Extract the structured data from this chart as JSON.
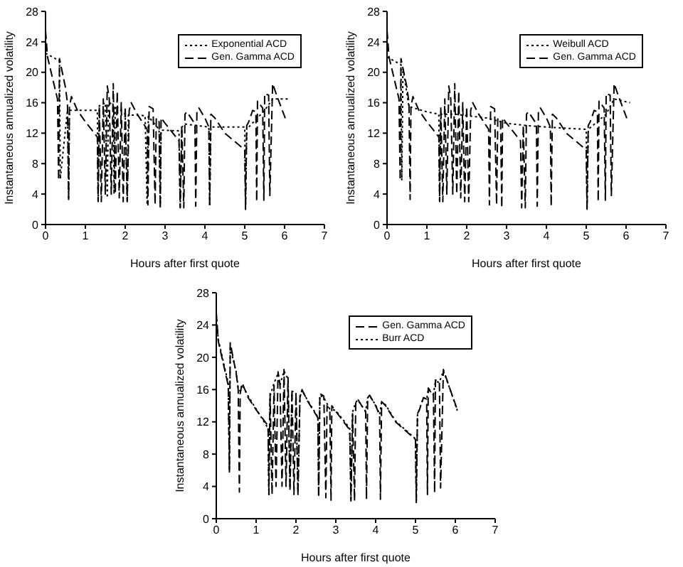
{
  "chart_data": [
    {
      "type": "line",
      "xlabel": "Hours after first quote",
      "ylabel": "Instantaneous annualized volatility",
      "xlim": [
        0,
        7
      ],
      "xticks": [
        0,
        1,
        2,
        3,
        4,
        5,
        6,
        7
      ],
      "ylim": [
        0,
        28
      ],
      "yticks": [
        0,
        4,
        8,
        12,
        16,
        20,
        24,
        28
      ],
      "legend": "top right",
      "marker": "none",
      "series": [
        {
          "name": "Exponential ACD",
          "color": "#000000",
          "line_style": "dotted",
          "x": [
            0,
            0.35,
            0.37,
            0.55,
            0.58,
            0.6,
            1.3,
            1.32,
            1.35,
            1.5,
            1.55,
            1.58,
            1.7,
            1.72,
            1.75,
            2.0,
            2.05,
            2.08,
            2.5,
            2.55,
            2.58,
            2.85,
            2.88,
            2.9,
            3.35,
            3.38,
            3.42,
            3.5,
            4.1,
            4.12,
            4.15,
            5.0,
            5.02,
            5.05,
            5.1,
            5.5,
            5.7,
            6.1
          ],
          "values": [
            22.5,
            21.5,
            6,
            15,
            3.5,
            15,
            15,
            3,
            15.6,
            16,
            3.5,
            16,
            15.8,
            4,
            15.6,
            14.5,
            3,
            14.4,
            14.3,
            2.6,
            14.2,
            12.5,
            2.3,
            12.4,
            12.3,
            2.2,
            12.8,
            13.2,
            12.8,
            2.4,
            12.8,
            12.8,
            2,
            12.8,
            12.8,
            15,
            16.5,
            16.5
          ]
        },
        {
          "name": "Gen. Gamma ACD",
          "color": "#000000",
          "line_style": "dashed",
          "x": [
            0,
            0.05,
            0.3,
            0.33,
            0.35,
            0.5,
            0.55,
            0.58,
            0.6,
            0.65,
            0.8,
            1.0,
            1.3,
            1.32,
            1.35,
            1.4,
            1.45,
            1.5,
            1.55,
            1.6,
            1.65,
            1.7,
            1.75,
            1.8,
            1.85,
            1.9,
            1.95,
            2.0,
            2.05,
            2.1,
            2.15,
            2.3,
            2.55,
            2.57,
            2.6,
            2.7,
            2.75,
            2.78,
            2.85,
            2.88,
            2.9,
            3.0,
            3.35,
            3.38,
            3.42,
            3.47,
            3.5,
            3.55,
            3.75,
            3.77,
            3.8,
            3.85,
            4.0,
            4.1,
            4.12,
            4.15,
            4.25,
            4.5,
            5.0,
            5.02,
            5.05,
            5.1,
            5.2,
            5.28,
            5.3,
            5.32,
            5.45,
            5.48,
            5.5,
            5.6,
            5.63,
            5.7,
            5.8,
            6.05
          ],
          "values": [
            25.5,
            22,
            16.5,
            5.8,
            21.8,
            18,
            16,
            3.3,
            15.5,
            16.8,
            15,
            13.5,
            11.5,
            3,
            15.5,
            3,
            16.5,
            4,
            18.2,
            16.5,
            4,
            18.5,
            4,
            17.5,
            3.5,
            16,
            3,
            15.5,
            3,
            15,
            16,
            14.5,
            12.5,
            2.6,
            15.5,
            15.2,
            2.6,
            14,
            13.5,
            2.2,
            14,
            13.3,
            11,
            2.2,
            13,
            2.2,
            14.5,
            14.8,
            13.2,
            2.4,
            15,
            15.3,
            14,
            12.8,
            2.4,
            14.5,
            14,
            12,
            9.8,
            2,
            13,
            13.5,
            15,
            14.8,
            3,
            16.2,
            15.3,
            3.2,
            17.2,
            17,
            3.8,
            18.5,
            17,
            13.5
          ]
        }
      ]
    },
    {
      "type": "line",
      "xlabel": "Hours after first quote",
      "ylabel": "Instantaneous annualized volatility",
      "xlim": [
        0,
        7
      ],
      "xticks": [
        0,
        1,
        2,
        3,
        4,
        5,
        6,
        7
      ],
      "ylim": [
        0,
        28
      ],
      "yticks": [
        0,
        4,
        8,
        12,
        16,
        20,
        24,
        28
      ],
      "legend": "top right",
      "marker": "none",
      "series": [
        {
          "name": "Weibull ACD",
          "color": "#000000",
          "line_style": "dotted",
          "x": [
            0,
            0.35,
            0.37,
            0.4,
            0.55,
            1.0,
            1.3,
            1.32,
            1.35,
            1.7,
            2.0,
            2.5,
            3.0,
            3.5,
            4.0,
            5.0,
            5.02,
            5.05,
            5.5,
            5.7,
            6.1
          ],
          "values": [
            22,
            21,
            5.8,
            20.5,
            15.5,
            14.8,
            14.5,
            3,
            14.5,
            14.5,
            14.3,
            14,
            13.3,
            13,
            12.8,
            12.5,
            2,
            12.5,
            14.5,
            16.5,
            16
          ]
        },
        {
          "name": "Gen. Gamma ACD",
          "color": "#000000",
          "line_style": "dashed",
          "x": [
            0,
            0.05,
            0.3,
            0.33,
            0.35,
            0.5,
            0.55,
            0.58,
            0.6,
            0.65,
            0.8,
            1.0,
            1.3,
            1.32,
            1.35,
            1.4,
            1.45,
            1.5,
            1.55,
            1.6,
            1.65,
            1.7,
            1.75,
            1.8,
            1.85,
            1.9,
            1.95,
            2.0,
            2.05,
            2.1,
            2.15,
            2.3,
            2.55,
            2.57,
            2.6,
            2.7,
            2.75,
            2.78,
            2.85,
            2.88,
            2.9,
            3.0,
            3.35,
            3.38,
            3.42,
            3.47,
            3.5,
            3.55,
            3.75,
            3.77,
            3.8,
            3.85,
            4.0,
            4.1,
            4.12,
            4.15,
            4.25,
            4.5,
            5.0,
            5.02,
            5.05,
            5.1,
            5.2,
            5.28,
            5.3,
            5.32,
            5.45,
            5.48,
            5.5,
            5.6,
            5.63,
            5.7,
            5.8,
            6.05
          ],
          "values": [
            25.5,
            22,
            16.5,
            5.8,
            21.8,
            18,
            16,
            3.3,
            15.5,
            16.8,
            15,
            13.5,
            11.5,
            3,
            15.5,
            3,
            16.5,
            4,
            18.2,
            16.5,
            4,
            18.5,
            4,
            17.5,
            3.5,
            16,
            3,
            15.5,
            3,
            15,
            16,
            14.5,
            12.5,
            2.6,
            15.5,
            15.2,
            2.6,
            14,
            13.5,
            2.2,
            14,
            13.3,
            11,
            2.2,
            13,
            2.2,
            14.5,
            14.8,
            13.2,
            2.4,
            15,
            15.3,
            14,
            12.8,
            2.4,
            14.5,
            14,
            12,
            9.8,
            2,
            13,
            13.5,
            15,
            14.8,
            3,
            16.2,
            15.3,
            3.2,
            17.2,
            17,
            3.8,
            18.5,
            17,
            13.5
          ]
        }
      ]
    },
    {
      "type": "line",
      "xlabel": "Hours after first quote",
      "ylabel": "Instantaneous annualized volatility",
      "xlim": [
        0,
        7
      ],
      "xticks": [
        0,
        1,
        2,
        3,
        4,
        5,
        6,
        7
      ],
      "ylim": [
        0,
        28
      ],
      "yticks": [
        0,
        4,
        8,
        12,
        16,
        20,
        24,
        28
      ],
      "legend": "top right",
      "marker": "none",
      "series": [
        {
          "name": "Gen. Gamma ACD",
          "color": "#000000",
          "line_style": "dashed",
          "x": [
            0,
            0.05,
            0.3,
            0.33,
            0.35,
            0.5,
            0.55,
            0.58,
            0.6,
            0.65,
            0.8,
            1.0,
            1.3,
            1.32,
            1.35,
            1.4,
            1.45,
            1.5,
            1.55,
            1.6,
            1.65,
            1.7,
            1.75,
            1.8,
            1.85,
            1.9,
            1.95,
            2.0,
            2.05,
            2.1,
            2.15,
            2.3,
            2.55,
            2.57,
            2.6,
            2.7,
            2.75,
            2.78,
            2.85,
            2.88,
            2.9,
            3.0,
            3.35,
            3.38,
            3.42,
            3.47,
            3.5,
            3.55,
            3.75,
            3.77,
            3.8,
            3.85,
            4.0,
            4.1,
            4.12,
            4.15,
            4.25,
            4.5,
            5.0,
            5.02,
            5.05,
            5.1,
            5.2,
            5.28,
            5.3,
            5.32,
            5.45,
            5.48,
            5.5,
            5.6,
            5.63,
            5.7,
            5.8,
            6.05
          ],
          "values": [
            25.5,
            22,
            16.5,
            5.8,
            21.8,
            18,
            16,
            3.3,
            15.5,
            16.8,
            15,
            13.5,
            11.5,
            3,
            15.5,
            3,
            16.5,
            4,
            18.2,
            16.5,
            4,
            18.5,
            4,
            17.5,
            3.5,
            16,
            3,
            15.5,
            3,
            15,
            16,
            14.5,
            12.5,
            2.6,
            15.5,
            15.2,
            2.6,
            14,
            13.5,
            2.2,
            14,
            13.3,
            11,
            2.2,
            13,
            2.2,
            14.5,
            14.8,
            13.2,
            2.4,
            15,
            15.3,
            14,
            12.8,
            2.4,
            14.5,
            14,
            12,
            9.8,
            2,
            13,
            13.5,
            15,
            14.8,
            3,
            16.2,
            15.3,
            3.2,
            17.2,
            17,
            3.8,
            18.5,
            17,
            13.5
          ]
        },
        {
          "name": "Burr ACD",
          "color": "#000000",
          "line_style": "dotted",
          "x": [
            0,
            0.05,
            0.3,
            0.33,
            0.35,
            0.5,
            0.55,
            0.6,
            0.65,
            0.8,
            1.0,
            1.3,
            1.32,
            1.35,
            1.45,
            1.55,
            1.6,
            1.7,
            1.8,
            1.85,
            1.9,
            2.0,
            2.05,
            2.1,
            2.15,
            2.3,
            2.55,
            2.57,
            2.6,
            2.7,
            2.85,
            3.0,
            3.35,
            3.38,
            3.42,
            3.5,
            3.55,
            3.75,
            3.8,
            3.85,
            4.0,
            4.1,
            4.15,
            4.25,
            4.5,
            5.0,
            5.02,
            5.05,
            5.1,
            5.2,
            5.28,
            5.32,
            5.45,
            5.5,
            5.6,
            5.7,
            5.8,
            6.05
          ],
          "values": [
            25.3,
            22.2,
            16.8,
            6,
            21.2,
            18.2,
            16.2,
            15.8,
            16.6,
            15.2,
            13.6,
            11.2,
            3,
            15.2,
            16.8,
            18,
            16.6,
            18.3,
            17.3,
            3.8,
            15.8,
            15.6,
            3,
            15.2,
            15.9,
            14.6,
            12.6,
            2.8,
            15.3,
            15,
            13.6,
            13.4,
            11.2,
            2.4,
            13.2,
            14.4,
            14.7,
            13.3,
            15,
            15.2,
            14.1,
            12.9,
            14.4,
            14.1,
            12.1,
            9.9,
            2.2,
            12.8,
            13.6,
            15,
            14.8,
            16,
            15.4,
            17,
            16.9,
            18.3,
            17,
            13.4
          ]
        }
      ]
    }
  ]
}
